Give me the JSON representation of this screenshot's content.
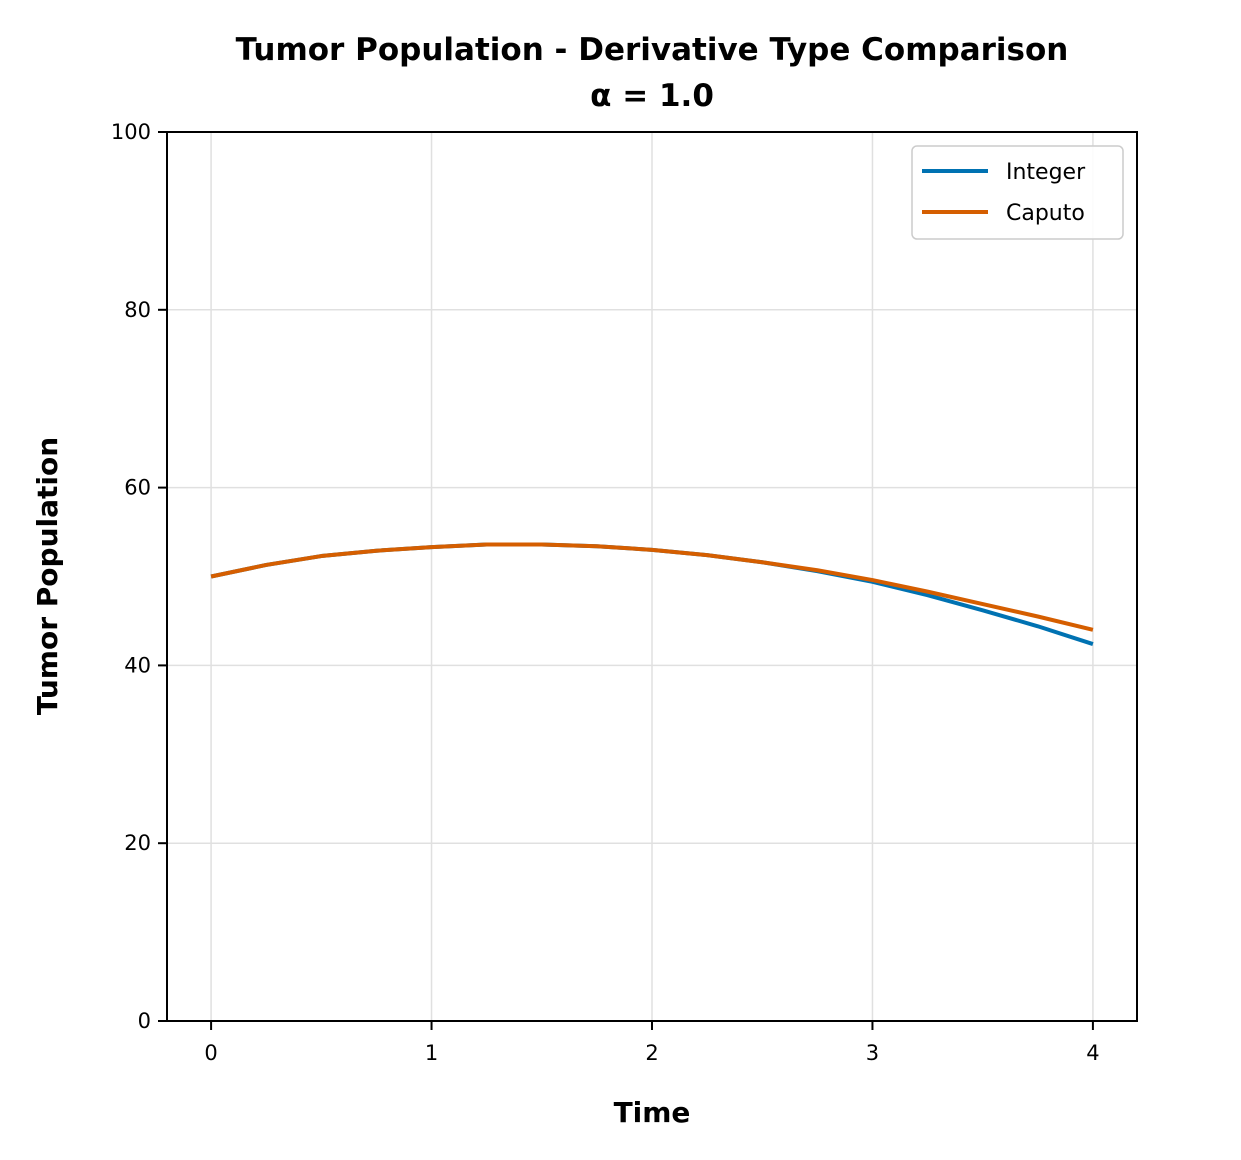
{
  "chart_data": {
    "type": "line",
    "title": "Tumor Population - Derivative Type Comparison",
    "subtitle": "α = 1.0",
    "xlabel": "Time",
    "ylabel": "Tumor Population",
    "xlim": [
      -0.2,
      4.2
    ],
    "ylim": [
      0,
      100
    ],
    "x_ticks": [
      0,
      1,
      2,
      3,
      4
    ],
    "y_ticks": [
      0,
      20,
      40,
      60,
      80,
      100
    ],
    "x_tick_labels": [
      "0",
      "1",
      "2",
      "3",
      "4"
    ],
    "y_tick_labels": [
      "0",
      "20",
      "40",
      "60",
      "80",
      "100"
    ],
    "grid": true,
    "legend_position": "top-right",
    "x": [
      0,
      0.25,
      0.5,
      0.75,
      1.0,
      1.25,
      1.5,
      1.75,
      2.0,
      2.25,
      2.5,
      2.75,
      3.0,
      3.25,
      3.5,
      3.75,
      4.0
    ],
    "series": [
      {
        "name": "Integer",
        "color": "#0072B2",
        "values": [
          50.0,
          51.3,
          52.3,
          52.9,
          53.3,
          53.6,
          53.6,
          53.4,
          53.0,
          52.4,
          51.6,
          50.6,
          49.4,
          47.9,
          46.2,
          44.4,
          42.4
        ]
      },
      {
        "name": "Caputo",
        "color": "#D55E00",
        "values": [
          50.0,
          51.3,
          52.3,
          52.9,
          53.3,
          53.6,
          53.6,
          53.4,
          53.0,
          52.4,
          51.6,
          50.7,
          49.6,
          48.3,
          46.9,
          45.5,
          44.0
        ]
      }
    ]
  }
}
